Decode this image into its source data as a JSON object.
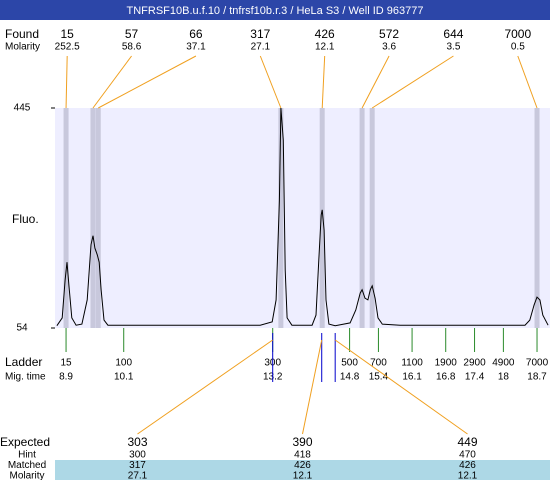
{
  "chart_data": {
    "type": "line",
    "title": "TNFRSF10B.u.f.10 / tnfrsf10b.r.3 / HeLa S3 / Well ID 963777",
    "ylabel": "Fluo.",
    "xlim": [
      8.67,
      18.97
    ],
    "ylim": [
      54,
      445
    ],
    "yticks": [
      54,
      445
    ],
    "color": "#000000",
    "x": [
      8.71,
      8.82,
      8.88,
      8.92,
      8.96,
      9.02,
      9.11,
      9.23,
      9.34,
      9.42,
      9.46,
      9.5,
      9.55,
      9.59,
      9.63,
      9.69,
      9.77,
      10.65,
      11.69,
      12.94,
      13.19,
      13.27,
      13.34,
      13.37,
      13.42,
      13.46,
      13.5,
      13.6,
      14.02,
      14.1,
      14.16,
      14.21,
      14.23,
      14.27,
      14.31,
      14.37,
      14.5,
      14.81,
      14.93,
      15.02,
      15.06,
      15.12,
      15.18,
      15.23,
      15.27,
      15.33,
      15.39,
      15.48,
      15.85,
      16.89,
      17.93,
      18.45,
      18.55,
      18.64,
      18.7,
      18.76,
      18.82,
      18.93
    ],
    "values": [
      58,
      72,
      139,
      171,
      130,
      72,
      59,
      61,
      104,
      202,
      218,
      196,
      184,
      171,
      122,
      68,
      59,
      59,
      59,
      59,
      65,
      104,
      281,
      445,
      388,
      157,
      72,
      59,
      59,
      77,
      175,
      255,
      264,
      228,
      104,
      61,
      58,
      63,
      86,
      116,
      122,
      107,
      104,
      122,
      129,
      107,
      72,
      61,
      59,
      59,
      59,
      59,
      68,
      95,
      109,
      104,
      77,
      59
    ],
    "found": {
      "label": "Found",
      "molarity_label": "Molarity",
      "sizes": [
        15,
        57,
        66,
        317,
        426,
        572,
        644,
        7000
      ],
      "molarity": [
        252.5,
        58.6,
        37.1,
        27.1,
        12.1,
        3.6,
        3.5,
        0.5
      ],
      "times": [
        8.9,
        9.46,
        9.57,
        13.37,
        14.23,
        15.06,
        15.27,
        18.7
      ]
    },
    "ladder": {
      "label": "Ladder",
      "time_label": "Mig. time",
      "sizes": [
        15,
        100,
        300,
        500,
        700,
        1100,
        1900,
        2900,
        4900,
        7000
      ],
      "times": [
        8.9,
        10.1,
        13.2,
        14.8,
        15.4,
        16.1,
        16.8,
        17.4,
        18,
        18.7
      ]
    },
    "expected": {
      "label": "Expected",
      "values": [
        303,
        390,
        449
      ],
      "times": [
        13.2,
        14.22,
        14.5
      ],
      "rows": [
        {
          "label": "Hint",
          "values": [
            300,
            418,
            470
          ]
        },
        {
          "label": "Matched",
          "values": [
            317,
            426,
            426
          ]
        },
        {
          "label": "Molarity",
          "values": [
            27.1,
            12.1,
            12.1
          ]
        }
      ]
    }
  }
}
